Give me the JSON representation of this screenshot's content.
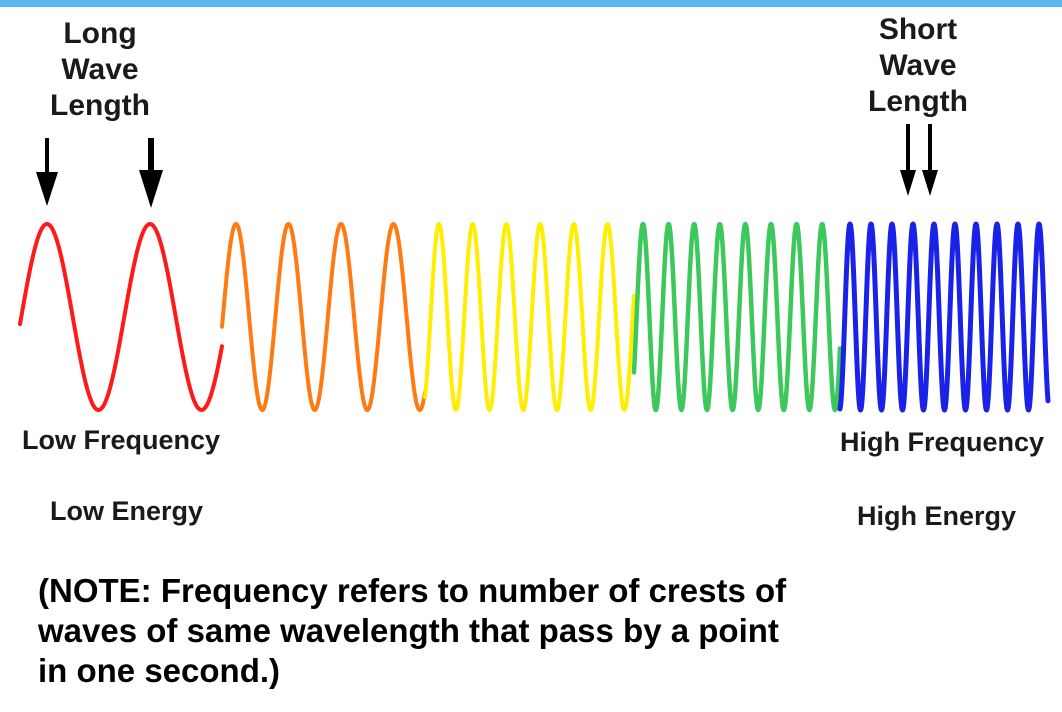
{
  "colors": {
    "top_bar": "#5bb8f0",
    "red": "#ff1a1a",
    "orange": "#ff7a10",
    "yellow": "#ffee00",
    "green": "#3cc85a",
    "blue": "#1a22e8",
    "text": "#1a1a1a",
    "arrow": "#000000"
  },
  "labels": {
    "long_wave": [
      "Long",
      "Wave",
      "Length"
    ],
    "short_wave": [
      "Short",
      "Wave",
      "Length"
    ],
    "low_frequency": "Low Frequency",
    "high_frequency": "High Frequency",
    "low_energy": "Low Energy",
    "high_energy": "High Energy"
  },
  "note": [
    "(NOTE: Frequency refers to number of crests of",
    "waves of same wavelength that pass by a point",
    "in one second.)"
  ],
  "icons": {
    "arrow": "down-arrow-icon"
  }
}
